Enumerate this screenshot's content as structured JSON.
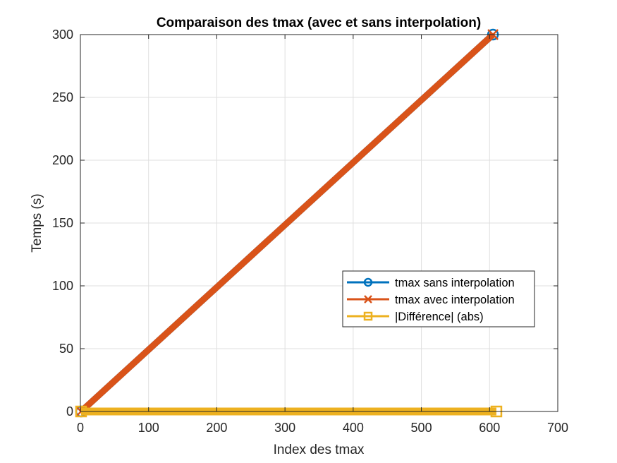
{
  "chart_data": {
    "type": "line",
    "title": "Comparaison des tmax (avec et sans interpolation)",
    "xlabel": "Index des tmax",
    "ylabel": "Temps (s)",
    "xlim": [
      0,
      700
    ],
    "ylim": [
      0,
      300
    ],
    "xticks": [
      0,
      100,
      200,
      300,
      400,
      500,
      600,
      700
    ],
    "yticks": [
      0,
      50,
      100,
      150,
      200,
      250,
      300
    ],
    "grid": true,
    "legend_position": "middle-right",
    "series": [
      {
        "name": "tmax sans interpolation",
        "color": "#0072BD",
        "marker": "circle",
        "x": [
          1,
          605
        ],
        "y": [
          0,
          300
        ]
      },
      {
        "name": "tmax avec interpolation",
        "color": "#D95319",
        "marker": "x",
        "x": [
          1,
          605
        ],
        "y": [
          0,
          300
        ]
      },
      {
        "name": "|Différence| (abs)",
        "color": "#EDB120",
        "marker": "square",
        "x": [
          1,
          610
        ],
        "y": [
          0,
          0
        ]
      }
    ]
  }
}
